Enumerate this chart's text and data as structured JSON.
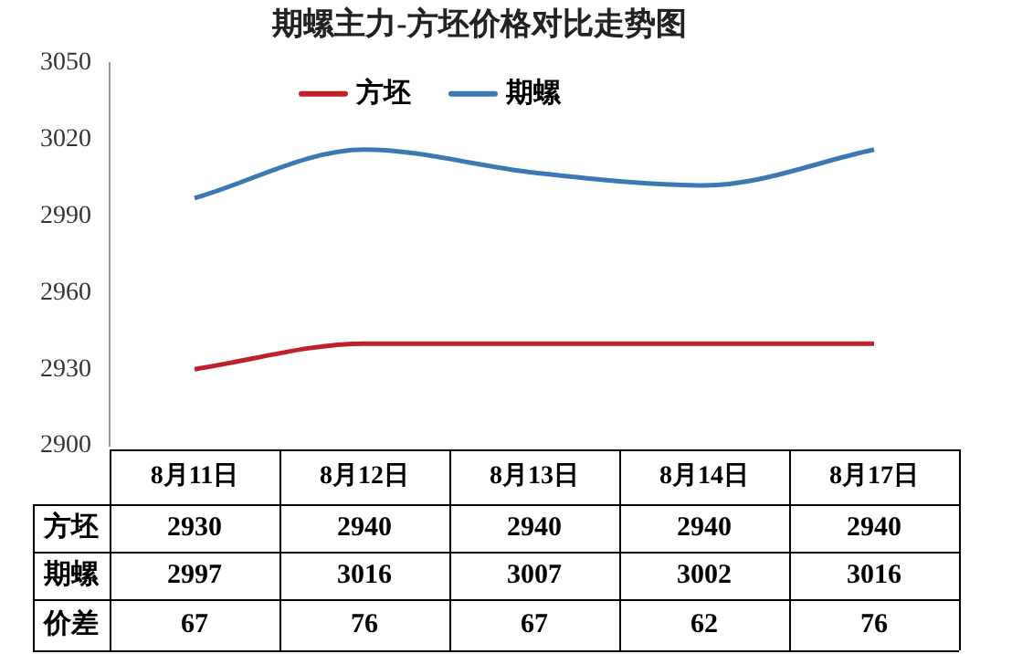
{
  "chart_data": {
    "type": "line",
    "title": "期螺主力-方坯价格对比走势图",
    "categories": [
      "8月11日",
      "8月12日",
      "8月13日",
      "8月14日",
      "8月17日"
    ],
    "series": [
      {
        "name": "方坯",
        "color": "#c0202a",
        "values": [
          2930,
          2940,
          2940,
          2940,
          2940
        ]
      },
      {
        "name": "期螺",
        "color": "#3c78b4",
        "values": [
          2997,
          3016,
          3007,
          3002,
          3016
        ]
      }
    ],
    "ylim": [
      2900,
      3050
    ],
    "yticks": [
      2900,
      2930,
      2960,
      2990,
      3020,
      3050
    ],
    "grid": false,
    "legend": "top",
    "marker": "none",
    "line_style": "solid",
    "data_labels": true,
    "annotations": [
      "价差",
      "67",
      "76",
      "67",
      "62",
      "76"
    ]
  }
}
